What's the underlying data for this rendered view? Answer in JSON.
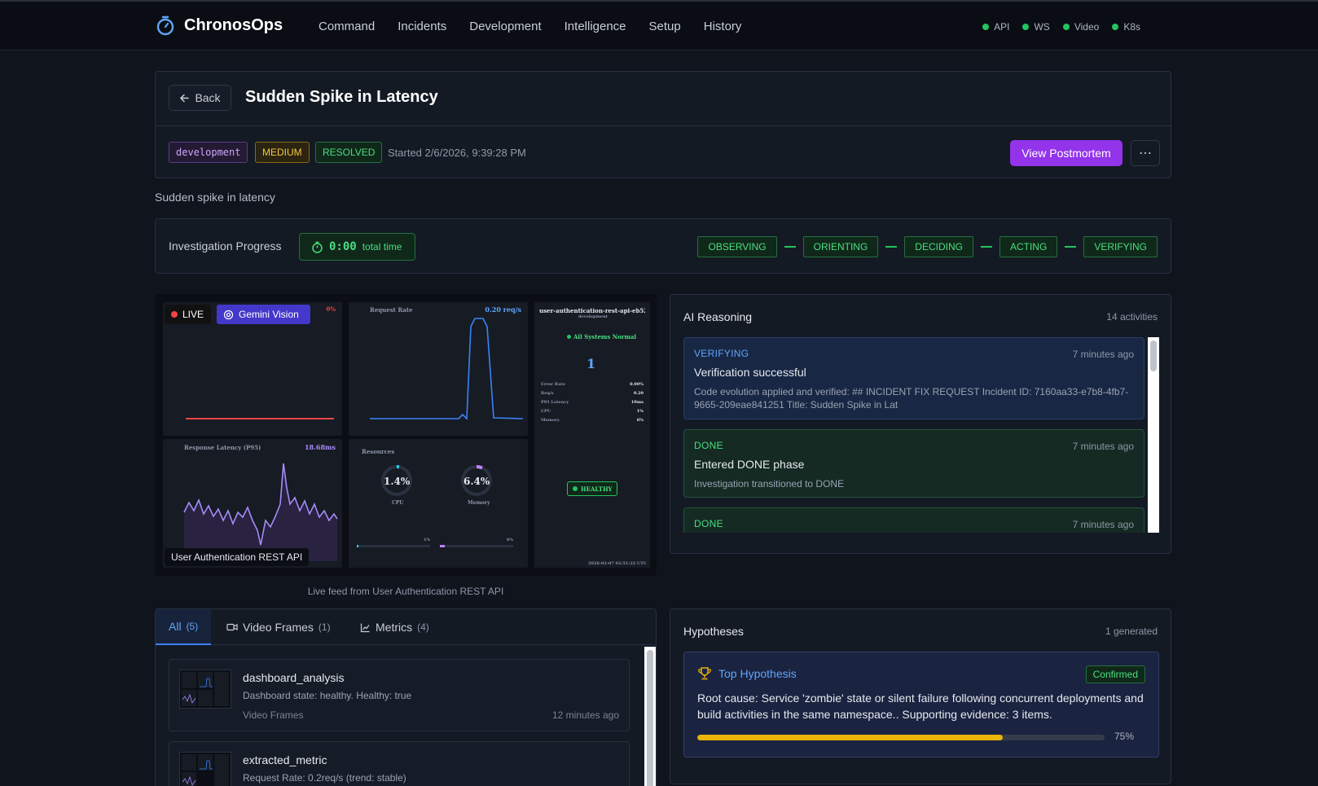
{
  "app": {
    "name": "ChronosOps",
    "nav": [
      "Command",
      "Incidents",
      "Development",
      "Intelligence",
      "Setup",
      "History"
    ],
    "status": [
      "API",
      "WS",
      "Video",
      "K8s"
    ],
    "status_color": "#22c55e"
  },
  "incident": {
    "back_label": "Back",
    "title": "Sudden Spike in Latency",
    "env_tag": "development",
    "severity": "MEDIUM",
    "status": "RESOLVED",
    "started": "Started 2/6/2026, 9:39:28 PM",
    "postmortem_label": "View Postmortem",
    "more_label": "⋯",
    "description": "Sudden spike in latency"
  },
  "progress": {
    "label": "Investigation Progress",
    "time": "0:00",
    "time_unit": "total time",
    "phases": [
      "OBSERVING",
      "ORIENTING",
      "DECIDING",
      "ACTING",
      "VERIFYING"
    ]
  },
  "feed": {
    "live_label": "LIVE",
    "vision_label": "Gemini Vision",
    "source_label": "User Authentication REST API",
    "caption": "Live feed from User Authentication REST API",
    "mini": {
      "error_pct": "0%",
      "request_rate_title": "Request Rate",
      "request_rate_value": "0.20 req/s",
      "latency_title": "Response Latency (P95)",
      "latency_value": "18.68ms",
      "resources_title": "Resources",
      "cpu_value": "1.4%",
      "cpu_label": "CPU",
      "mem_value": "6.4%",
      "mem_label": "Memory",
      "cpu_small": "1%",
      "mem_small": "6%",
      "service": "user-authentication-rest-api-eb52...",
      "namespace": "development",
      "health": "All Systems Normal",
      "count": "1",
      "healthy_badge": "HEALTHY",
      "stats": [
        [
          "Error Rate",
          "0.00%"
        ],
        [
          "Req/s",
          "0.20"
        ],
        [
          "P95 Latency",
          "19ms"
        ],
        [
          "CPU",
          "1%"
        ],
        [
          "Memory",
          "6%"
        ]
      ],
      "timestamp": "2026-02-07 02:51:22 UTC"
    }
  },
  "ai": {
    "title": "AI Reasoning",
    "count": "14 activities",
    "items": [
      {
        "phase": "VERIFYING",
        "time": "7 minutes ago",
        "title": "Verification successful",
        "desc": "Code evolution applied and verified: ## INCIDENT FIX REQUEST Incident ID: 7160aa33-e7b8-4fb7-9665-209eae841251 Title: Sudden Spike in Lat"
      },
      {
        "phase": "DONE",
        "time": "7 minutes ago",
        "title": "Entered DONE phase",
        "desc": "Investigation transitioned to DONE"
      },
      {
        "phase": "DONE",
        "time": "7 minutes ago",
        "title": "",
        "desc": ""
      }
    ]
  },
  "evidence": {
    "tabs": [
      {
        "label": "All",
        "count": "(5)"
      },
      {
        "label": "Video Frames",
        "count": "(1)"
      },
      {
        "label": "Metrics",
        "count": "(4)"
      }
    ],
    "items": [
      {
        "title": "dashboard_analysis",
        "desc": "Dashboard state: healthy. Healthy: true",
        "type": "Video Frames",
        "time": "12 minutes ago"
      },
      {
        "title": "extracted_metric",
        "desc": "Request Rate: 0.2req/s (trend: stable)",
        "type": "",
        "time": ""
      }
    ]
  },
  "hypotheses": {
    "title": "Hypotheses",
    "count": "1 generated",
    "top_label": "Top Hypothesis",
    "status": "Confirmed",
    "text": "Root cause: Service 'zombie' state or silent failure following concurrent deployments and build activities in the same namespace.. Supporting evidence: 3 items.",
    "confidence": 0.75,
    "confidence_label": "75%"
  }
}
